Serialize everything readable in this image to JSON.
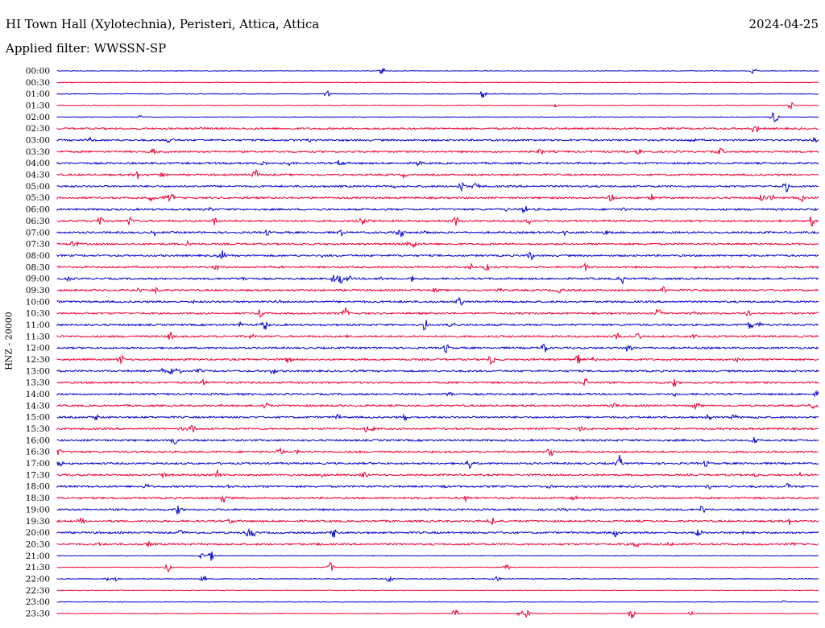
{
  "header": {
    "station": "HI Town Hall (Xylotechnia), Peristeri, Attica, Attica",
    "date": "2024-04-25",
    "filter": "Applied filter: WWSSN-SP"
  },
  "chart_data": {
    "type": "line",
    "title": "HI Town Hall (Xylotechnia), Peristeri, Attica, Attica",
    "ylabel": "HNZ - 20000",
    "xlabel": "",
    "colors": [
      "#0000cc",
      "#ee0033"
    ],
    "row_labels": [
      "00:00",
      "00:30",
      "01:00",
      "01:30",
      "02:00",
      "02:30",
      "03:00",
      "03:30",
      "04:00",
      "04:30",
      "05:00",
      "05:30",
      "06:00",
      "06:30",
      "07:00",
      "07:30",
      "08:00",
      "08:30",
      "09:00",
      "09:30",
      "10:00",
      "10:30",
      "11:00",
      "11:30",
      "12:00",
      "12:30",
      "13:00",
      "13:30",
      "14:00",
      "14:30",
      "15:00",
      "15:30",
      "16:00",
      "16:30",
      "17:00",
      "17:30",
      "18:00",
      "18:30",
      "19:00",
      "19:30",
      "20:00",
      "20:30",
      "21:00",
      "21:30",
      "22:00",
      "22:30",
      "23:00",
      "23:30"
    ]
  }
}
